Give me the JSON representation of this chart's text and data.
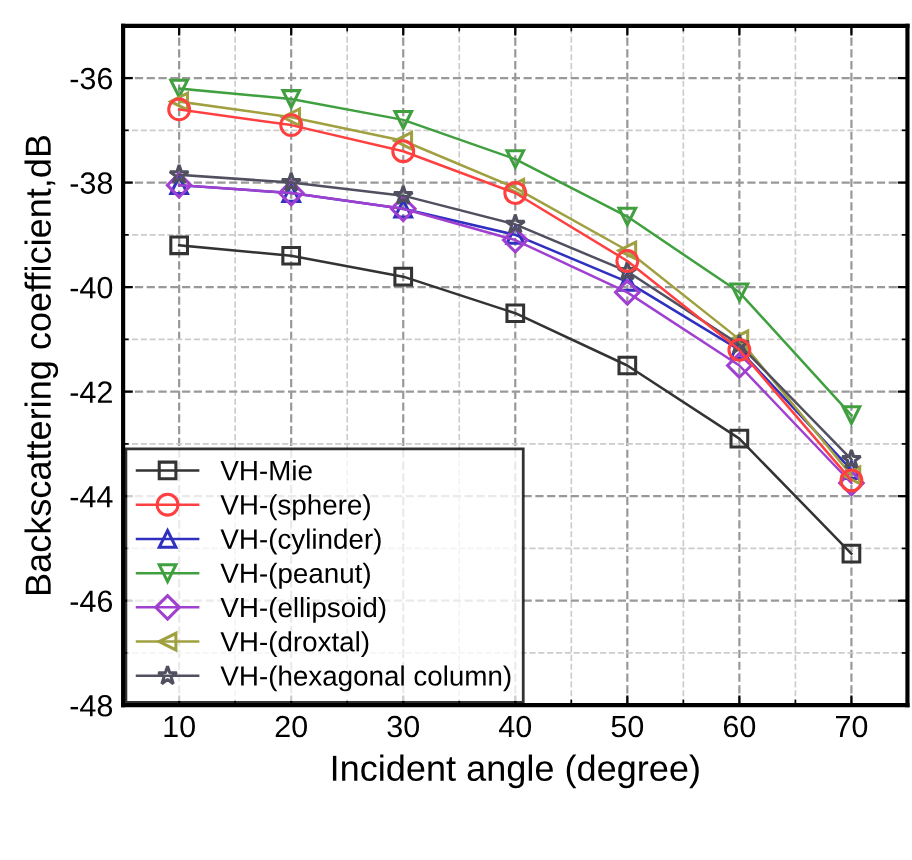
{
  "chart_data": {
    "type": "line",
    "xlabel": "Incident angle (degree)",
    "ylabel": "Backscattering coefficient,dB",
    "x": [
      10,
      20,
      30,
      40,
      50,
      60,
      70
    ],
    "xlim": [
      5,
      75
    ],
    "xticks": [
      10,
      20,
      30,
      40,
      50,
      60,
      70
    ],
    "ylim": [
      -48,
      -35
    ],
    "yticks": [
      -48,
      -46,
      -44,
      -42,
      -40,
      -38,
      -36
    ],
    "grid": true,
    "legend": "bottom left",
    "series": [
      {
        "name": "VH-Mie",
        "color": "#333333",
        "marker": "square",
        "values": [
          -39.2,
          -39.4,
          -39.8,
          -40.5,
          -41.5,
          -42.9,
          -45.1
        ]
      },
      {
        "name": "VH-(sphere)",
        "color": "#ff4040",
        "marker": "circle",
        "values": [
          -36.6,
          -36.9,
          -37.4,
          -38.2,
          -39.5,
          -41.2,
          -43.7
        ]
      },
      {
        "name": "VH-(cylinder)",
        "color": "#3030c0",
        "marker": "triangle",
        "values": [
          -38.05,
          -38.2,
          -38.5,
          -39.0,
          -39.9,
          -41.2,
          -43.5
        ]
      },
      {
        "name": "VH-(peanut)",
        "color": "#40a040",
        "marker": "triangle_down",
        "values": [
          -36.2,
          -36.4,
          -36.8,
          -37.55,
          -38.65,
          -40.1,
          -42.45
        ]
      },
      {
        "name": "VH-(ellipsoid)",
        "color": "#a040d0",
        "marker": "diamond",
        "values": [
          -38.05,
          -38.2,
          -38.5,
          -39.1,
          -40.1,
          -41.5,
          -43.75
        ]
      },
      {
        "name": "VH-(droxtal)",
        "color": "#a0a040",
        "marker": "triangle_left",
        "values": [
          -36.45,
          -36.75,
          -37.2,
          -38.1,
          -39.3,
          -41.0,
          -43.6
        ]
      },
      {
        "name": "VH-(hexagonal column)",
        "color": "#505060",
        "marker": "star",
        "values": [
          -37.85,
          -38.0,
          -38.25,
          -38.8,
          -39.7,
          -41.1,
          -43.3
        ]
      }
    ]
  }
}
